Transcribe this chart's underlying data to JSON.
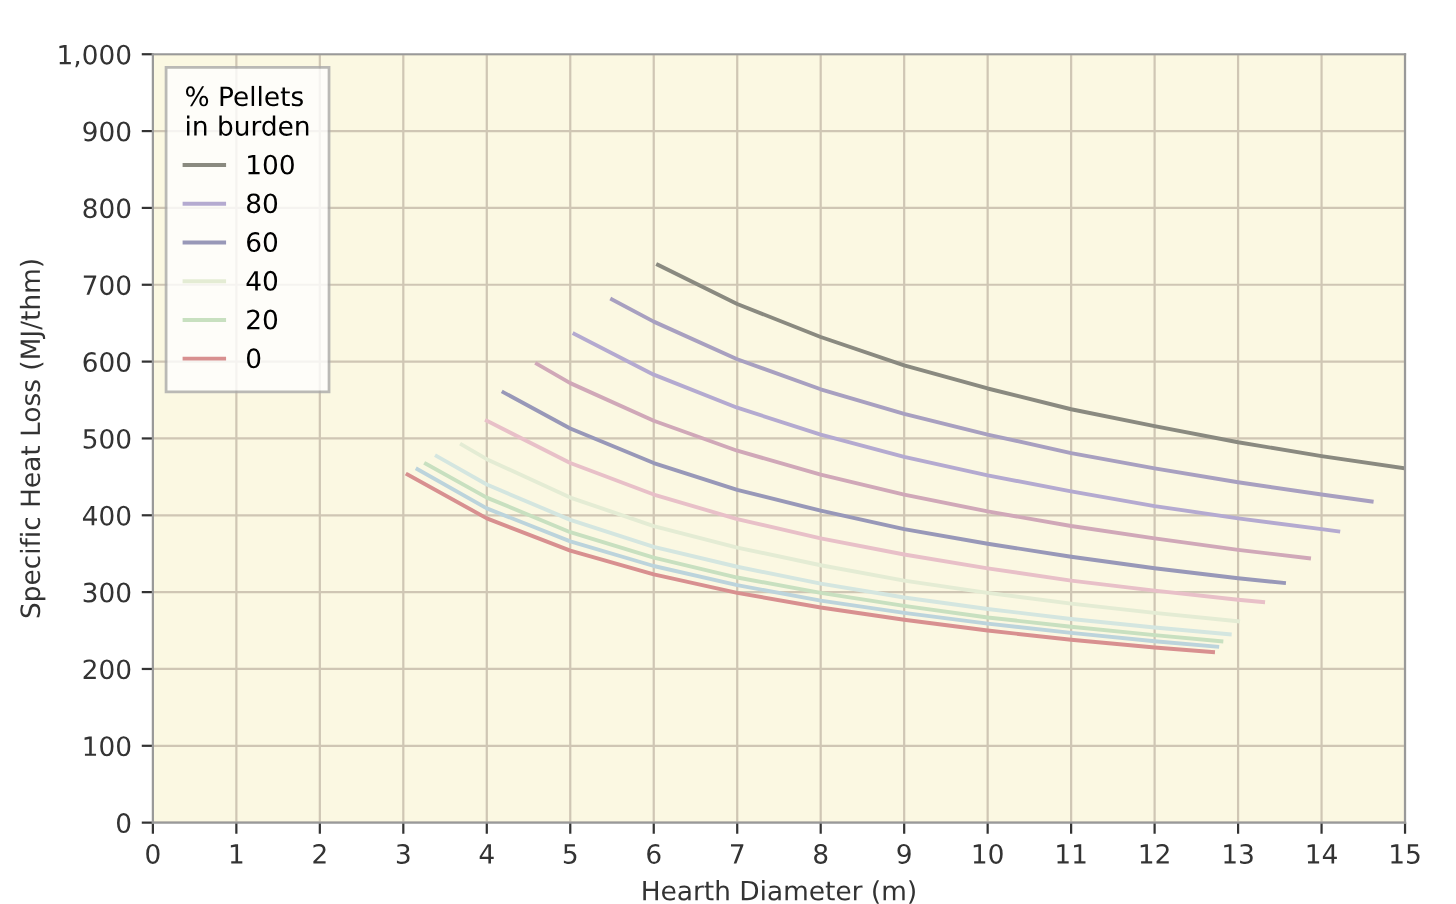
{
  "chart_data": {
    "type": "line",
    "xlabel": "Hearth Diameter (m)",
    "ylabel": "Specific Heat Loss (MJ/thm)",
    "legend_title": "% Pellets\nin burden",
    "xlim": [
      0,
      15
    ],
    "xticks": [
      0,
      1,
      2,
      3,
      4,
      5,
      6,
      7,
      8,
      9,
      10,
      11,
      12,
      13,
      14,
      15
    ],
    "ylim": [
      0,
      1000
    ],
    "yticks": [
      0,
      100,
      200,
      300,
      400,
      500,
      600,
      700,
      800,
      900,
      {
        "value": 1000,
        "label": "1,000"
      }
    ],
    "grid": true,
    "legend": "top left",
    "marker": "none",
    "line_style": "solid",
    "series": [
      {
        "name": "100",
        "color": "#8a8a80",
        "x": [
          6.05,
          7,
          8,
          9,
          10,
          11,
          12,
          13,
          14,
          15
        ],
        "values": [
          726,
          675,
          632,
          595,
          565,
          538,
          516,
          495,
          477,
          461
        ]
      },
      {
        "color": "#a8a0c0",
        "x": [
          5.5,
          6,
          7,
          8,
          9,
          10,
          11,
          12,
          13,
          14,
          14.6
        ],
        "values": [
          681,
          652,
          603,
          564,
          532,
          505,
          481,
          461,
          443,
          427,
          418
        ]
      },
      {
        "name": "80",
        "color": "#b4aad0",
        "x": [
          5.05,
          6,
          7,
          8,
          9,
          10,
          11,
          12,
          13,
          14,
          14.2
        ],
        "values": [
          636,
          583,
          540,
          505,
          476,
          452,
          431,
          412,
          396,
          382,
          379
        ]
      },
      {
        "color": "#d0a8b8",
        "x": [
          4.6,
          5,
          6,
          7,
          8,
          9,
          10,
          11,
          12,
          13,
          13.85
        ],
        "values": [
          597,
          572,
          523,
          484,
          453,
          427,
          405,
          386,
          370,
          355,
          344
        ]
      },
      {
        "name": "60",
        "color": "#9898b8",
        "x": [
          4.2,
          5,
          6,
          7,
          8,
          9,
          10,
          11,
          12,
          13,
          13.55
        ],
        "values": [
          560,
          513,
          468,
          433,
          406,
          382,
          363,
          346,
          331,
          318,
          312
        ]
      },
      {
        "color": "#e8c0c8",
        "x": [
          4.0,
          5,
          6,
          7,
          8,
          9,
          10,
          11,
          12,
          13,
          13.3
        ],
        "values": [
          523,
          468,
          427,
          395,
          370,
          349,
          331,
          315,
          302,
          290,
          287
        ]
      },
      {
        "name": "40",
        "color": "#e4ecd4",
        "x": [
          3.7,
          4,
          5,
          6,
          7,
          8,
          9,
          10,
          11,
          12,
          13
        ],
        "values": [
          492,
          473,
          423,
          386,
          358,
          335,
          315,
          299,
          285,
          273,
          262
        ]
      },
      {
        "color": "#d4e6e0",
        "x": [
          3.4,
          4,
          5,
          6,
          7,
          8,
          9,
          10,
          11,
          12,
          12.9
        ],
        "values": [
          477,
          440,
          394,
          359,
          333,
          311,
          293,
          278,
          265,
          254,
          245
        ]
      },
      {
        "name": "20",
        "color": "#c8e0c0",
        "x": [
          3.27,
          4,
          5,
          6,
          7,
          8,
          9,
          10,
          11,
          12,
          12.8
        ],
        "values": [
          467,
          423,
          378,
          345,
          319,
          299,
          282,
          267,
          255,
          244,
          236
        ]
      },
      {
        "color": "#bcd4dc",
        "x": [
          3.17,
          4,
          5,
          6,
          7,
          8,
          9,
          10,
          11,
          12,
          12.75
        ],
        "values": [
          460,
          409,
          366,
          334,
          309,
          289,
          273,
          259,
          247,
          236,
          229
        ]
      },
      {
        "name": "0",
        "color": "#d89090",
        "x": [
          3.05,
          4,
          5,
          6,
          7,
          8,
          9,
          10,
          11,
          12,
          12.7
        ],
        "values": [
          453,
          396,
          354,
          323,
          299,
          280,
          264,
          250,
          238,
          228,
          222
        ]
      }
    ]
  }
}
